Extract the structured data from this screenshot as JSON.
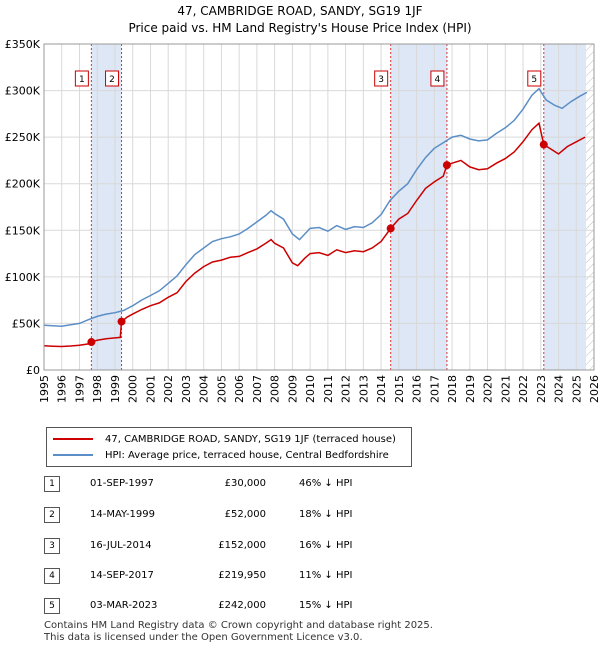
{
  "title_line1": "47, CAMBRIDGE ROAD, SANDY, SG19 1JF",
  "title_line2": "Price paid vs. HM Land Registry's House Price Index (HPI)",
  "chart_data": {
    "type": "line",
    "title": "Price paid vs. HM Land Registry's House Price Index (HPI)",
    "xlabel": "",
    "ylabel": "",
    "xlim": [
      1995,
      2026
    ],
    "ylim": [
      0,
      350000
    ],
    "grid": true,
    "y_ticks": [
      0,
      50000,
      100000,
      150000,
      200000,
      250000,
      300000,
      350000
    ],
    "y_tick_labels": [
      "£0",
      "£50K",
      "£100K",
      "£150K",
      "£200K",
      "£250K",
      "£300K",
      "£350K"
    ],
    "x_ticks": [
      1995,
      1996,
      1997,
      1998,
      1999,
      2000,
      2001,
      2002,
      2003,
      2004,
      2005,
      2006,
      2007,
      2008,
      2009,
      2010,
      2011,
      2012,
      2013,
      2014,
      2015,
      2016,
      2017,
      2018,
      2019,
      2020,
      2021,
      2022,
      2023,
      2024,
      2025,
      2026
    ],
    "series": [
      {
        "name": "47, CAMBRIDGE ROAD, SANDY, SG19 1JF (terraced house)",
        "color": "#cc0000",
        "points": [
          [
            1995.0,
            26000
          ],
          [
            1995.5,
            25500
          ],
          [
            1996.0,
            25200
          ],
          [
            1996.5,
            25800
          ],
          [
            1997.0,
            26500
          ],
          [
            1997.5,
            28000
          ],
          [
            1997.67,
            30000
          ],
          [
            1998.0,
            32000
          ],
          [
            1998.5,
            33500
          ],
          [
            1999.0,
            34500
          ],
          [
            1999.3,
            35000
          ],
          [
            1999.37,
            52000
          ],
          [
            1999.7,
            57000
          ],
          [
            2000.0,
            60000
          ],
          [
            2000.5,
            65000
          ],
          [
            2001.0,
            69000
          ],
          [
            2001.5,
            72000
          ],
          [
            2002.0,
            78000
          ],
          [
            2002.5,
            83000
          ],
          [
            2003.0,
            95000
          ],
          [
            2003.5,
            104000
          ],
          [
            2004.0,
            111000
          ],
          [
            2004.5,
            116000
          ],
          [
            2005.0,
            118000
          ],
          [
            2005.5,
            121000
          ],
          [
            2006.0,
            122000
          ],
          [
            2006.5,
            126000
          ],
          [
            2007.0,
            130000
          ],
          [
            2007.5,
            136000
          ],
          [
            2007.8,
            140000
          ],
          [
            2008.0,
            136000
          ],
          [
            2008.5,
            131000
          ],
          [
            2009.0,
            115000
          ],
          [
            2009.3,
            112000
          ],
          [
            2009.7,
            120000
          ],
          [
            2010.0,
            125000
          ],
          [
            2010.5,
            126000
          ],
          [
            2011.0,
            123000
          ],
          [
            2011.5,
            129000
          ],
          [
            2012.0,
            126000
          ],
          [
            2012.5,
            128000
          ],
          [
            2013.0,
            127000
          ],
          [
            2013.5,
            131000
          ],
          [
            2014.0,
            138000
          ],
          [
            2014.54,
            152000
          ],
          [
            2015.0,
            162000
          ],
          [
            2015.5,
            168000
          ],
          [
            2016.0,
            182000
          ],
          [
            2016.5,
            195000
          ],
          [
            2017.0,
            202000
          ],
          [
            2017.5,
            208000
          ],
          [
            2017.71,
            219950
          ],
          [
            2018.0,
            222000
          ],
          [
            2018.5,
            225000
          ],
          [
            2019.0,
            218000
          ],
          [
            2019.5,
            215000
          ],
          [
            2020.0,
            216000
          ],
          [
            2020.5,
            222000
          ],
          [
            2021.0,
            227000
          ],
          [
            2021.5,
            234000
          ],
          [
            2022.0,
            245000
          ],
          [
            2022.5,
            258000
          ],
          [
            2022.9,
            265000
          ],
          [
            2023.17,
            242000
          ],
          [
            2023.5,
            238000
          ],
          [
            2024.0,
            232000
          ],
          [
            2024.5,
            240000
          ],
          [
            2025.0,
            245000
          ],
          [
            2025.5,
            250000
          ]
        ]
      },
      {
        "name": "HPI: Average price, terraced house, Central Bedfordshire",
        "color": "#5b8ec6",
        "points": [
          [
            1995.0,
            48000
          ],
          [
            1995.5,
            47500
          ],
          [
            1996.0,
            47000
          ],
          [
            1996.5,
            48500
          ],
          [
            1997.0,
            50000
          ],
          [
            1997.5,
            54000
          ],
          [
            1998.0,
            57500
          ],
          [
            1998.5,
            60000
          ],
          [
            1999.0,
            61500
          ],
          [
            1999.5,
            64000
          ],
          [
            2000.0,
            69000
          ],
          [
            2000.5,
            75000
          ],
          [
            2001.0,
            80000
          ],
          [
            2001.5,
            85000
          ],
          [
            2002.0,
            93000
          ],
          [
            2002.5,
            101000
          ],
          [
            2003.0,
            113000
          ],
          [
            2003.5,
            124000
          ],
          [
            2004.0,
            131000
          ],
          [
            2004.5,
            138000
          ],
          [
            2005.0,
            141000
          ],
          [
            2005.5,
            143000
          ],
          [
            2006.0,
            146000
          ],
          [
            2006.5,
            152000
          ],
          [
            2007.0,
            159000
          ],
          [
            2007.5,
            166000
          ],
          [
            2007.8,
            171000
          ],
          [
            2008.0,
            168000
          ],
          [
            2008.5,
            162000
          ],
          [
            2009.0,
            146000
          ],
          [
            2009.4,
            140000
          ],
          [
            2009.8,
            148000
          ],
          [
            2010.0,
            152000
          ],
          [
            2010.5,
            153000
          ],
          [
            2011.0,
            149000
          ],
          [
            2011.5,
            155000
          ],
          [
            2012.0,
            151000
          ],
          [
            2012.5,
            154000
          ],
          [
            2013.0,
            153000
          ],
          [
            2013.5,
            158000
          ],
          [
            2014.0,
            167000
          ],
          [
            2014.5,
            182000
          ],
          [
            2015.0,
            192000
          ],
          [
            2015.5,
            200000
          ],
          [
            2016.0,
            215000
          ],
          [
            2016.5,
            228000
          ],
          [
            2017.0,
            238000
          ],
          [
            2017.5,
            244000
          ],
          [
            2018.0,
            250000
          ],
          [
            2018.5,
            252000
          ],
          [
            2019.0,
            248000
          ],
          [
            2019.5,
            246000
          ],
          [
            2020.0,
            247000
          ],
          [
            2020.5,
            254000
          ],
          [
            2021.0,
            260000
          ],
          [
            2021.5,
            268000
          ],
          [
            2022.0,
            280000
          ],
          [
            2022.5,
            295000
          ],
          [
            2022.9,
            302000
          ],
          [
            2023.3,
            290000
          ],
          [
            2023.8,
            284000
          ],
          [
            2024.2,
            281000
          ],
          [
            2024.7,
            288000
          ],
          [
            2025.2,
            294000
          ],
          [
            2025.6,
            298000
          ]
        ]
      }
    ],
    "sales": [
      {
        "label": "1",
        "x": 1997.67,
        "value": 30000
      },
      {
        "label": "2",
        "x": 1999.37,
        "value": 52000
      },
      {
        "label": "3",
        "x": 2014.54,
        "value": 152000
      },
      {
        "label": "4",
        "x": 2017.71,
        "value": 219950
      },
      {
        "label": "5",
        "x": 2023.17,
        "value": 242000
      }
    ],
    "shaded_periods": [
      [
        1997.67,
        1999.37
      ],
      [
        2014.54,
        2017.71
      ],
      [
        2023.17,
        2025.55
      ]
    ],
    "hatched_period": [
      2025.55,
      2026
    ]
  },
  "legend": {
    "property_label": "47, CAMBRIDGE ROAD, SANDY, SG19 1JF (terraced house)",
    "hpi_label": "HPI: Average price, terraced house, Central Bedfordshire",
    "property_color": "#cc0000",
    "hpi_color": "#5b8ec6"
  },
  "transactions": [
    {
      "num": "1",
      "date": "01-SEP-1997",
      "price": "£30,000",
      "hpi": "46% ↓ HPI"
    },
    {
      "num": "2",
      "date": "14-MAY-1999",
      "price": "£52,000",
      "hpi": "18% ↓ HPI"
    },
    {
      "num": "3",
      "date": "16-JUL-2014",
      "price": "£152,000",
      "hpi": "16% ↓ HPI"
    },
    {
      "num": "4",
      "date": "14-SEP-2017",
      "price": "£219,950",
      "hpi": "11% ↓ HPI"
    },
    {
      "num": "5",
      "date": "03-MAR-2023",
      "price": "£242,000",
      "hpi": "15% ↓ HPI"
    }
  ],
  "footer": {
    "line1": "Contains HM Land Registry data © Crown copyright and database right 2025.",
    "line2": "This data is licensed under the Open Government Licence v3.0."
  }
}
